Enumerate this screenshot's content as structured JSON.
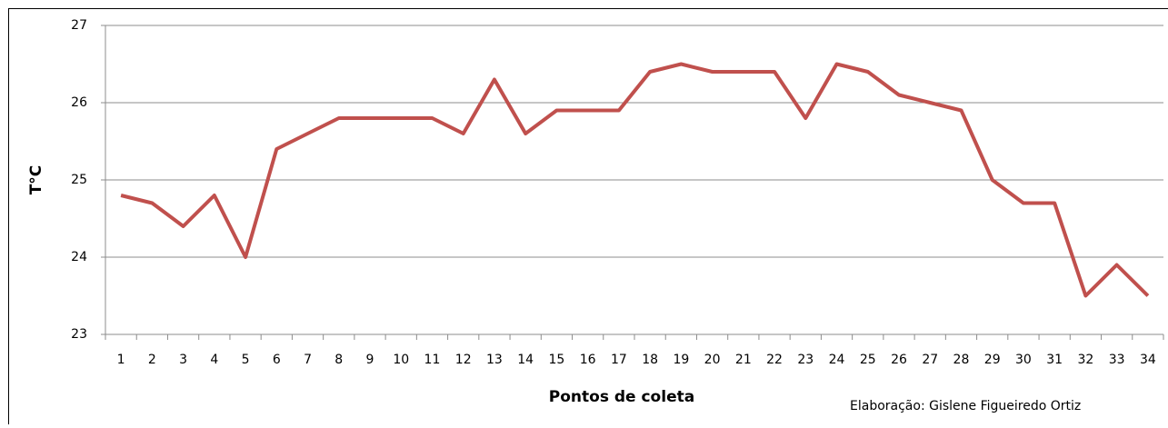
{
  "chart_data": {
    "type": "line",
    "y_label": "T°C",
    "x_label": "Pontos de coleta",
    "credit": "Elaboração: Gislene Figueiredo Ortiz",
    "categories": [
      "1",
      "2",
      "3",
      "4",
      "5",
      "6",
      "7",
      "8",
      "9",
      "10",
      "11",
      "12",
      "13",
      "14",
      "15",
      "16",
      "17",
      "18",
      "19",
      "20",
      "21",
      "22",
      "23",
      "24",
      "25",
      "26",
      "27",
      "28",
      "29",
      "30",
      "31",
      "32",
      "33",
      "34"
    ],
    "series": [
      {
        "name": "T°C",
        "color": "#c0504d",
        "values": [
          24.8,
          24.7,
          24.4,
          24.8,
          24.0,
          25.4,
          25.6,
          25.8,
          25.8,
          25.8,
          25.8,
          25.6,
          26.3,
          25.6,
          25.9,
          25.9,
          25.9,
          26.4,
          26.5,
          26.4,
          26.4,
          26.4,
          25.8,
          26.5,
          26.4,
          26.1,
          26.0,
          25.9,
          25.0,
          24.7,
          24.7,
          23.5,
          23.9,
          23.5
        ]
      }
    ],
    "ylim": [
      23,
      27
    ],
    "yticks": [
      23,
      24,
      25,
      26,
      27
    ],
    "grid": true
  }
}
